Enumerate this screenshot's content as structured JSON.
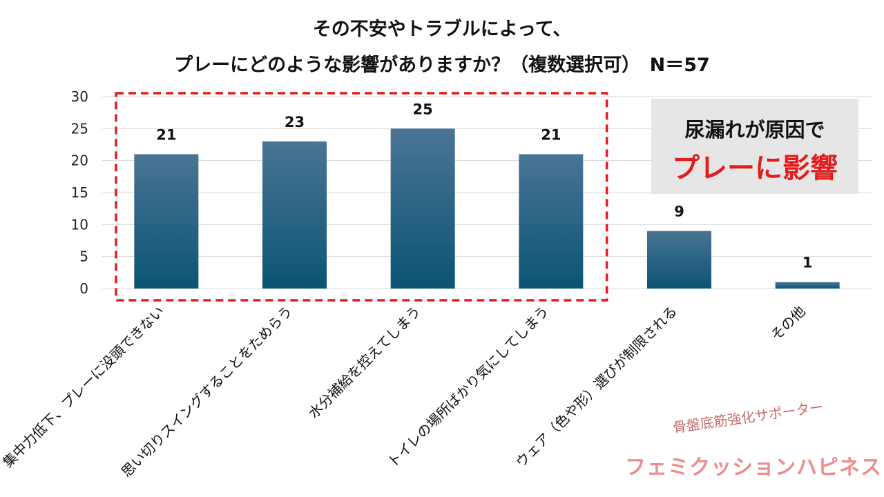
{
  "chart_data": {
    "type": "bar",
    "title_line1": "その不安やトラブルによって、",
    "title_line2": "プレーにどのような影響がありますか？（複数選択可）　N＝57",
    "categories": [
      "集中力低下、プレーに没頭できない",
      "思い切りスイングすることをためらう",
      "水分補給を控えてしまう",
      "トイレの場所ばかり気にしてしまう",
      "ウェア（色や形）選びが制限される",
      "その他"
    ],
    "values": [
      21,
      23,
      25,
      21,
      9,
      1
    ],
    "ylim": [
      0,
      30
    ],
    "yticks": [
      0,
      5,
      10,
      15,
      20,
      25,
      30
    ],
    "highlighted_range": [
      0,
      3
    ],
    "bar_color_top": "#4a7494",
    "bar_color_bottom": "#0b5474",
    "highlight_color": "#e31c1c"
  },
  "callout": {
    "line1": "尿漏れが原因で",
    "line2": "プレーに影響",
    "line2_color": "#e31c1c"
  },
  "branding": {
    "tagline": "骨盤底筋強化サポーター",
    "name": "フェミクッションハピネス"
  }
}
